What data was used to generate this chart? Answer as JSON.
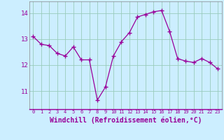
{
  "x": [
    0,
    1,
    2,
    3,
    4,
    5,
    6,
    7,
    8,
    9,
    10,
    11,
    12,
    13,
    14,
    15,
    16,
    17,
    18,
    19,
    20,
    21,
    22,
    23
  ],
  "y": [
    13.1,
    12.8,
    12.75,
    12.45,
    12.35,
    12.7,
    12.2,
    12.2,
    10.65,
    11.15,
    12.35,
    12.9,
    13.25,
    13.85,
    13.95,
    14.05,
    14.1,
    13.3,
    12.25,
    12.15,
    12.1,
    12.25,
    12.1,
    11.85
  ],
  "line_color": "#990099",
  "marker": "+",
  "marker_size": 4,
  "bg_color": "#cceeff",
  "grid_color": "#99ccbb",
  "xlabel": "Windchill (Refroidissement éolien,°C)",
  "xlabel_fontsize": 7,
  "ylabel_ticks": [
    11,
    12,
    13,
    14
  ],
  "xtick_labels": [
    "0",
    "1",
    "2",
    "3",
    "4",
    "5",
    "6",
    "7",
    "8",
    "9",
    "10",
    "11",
    "12",
    "13",
    "14",
    "15",
    "16",
    "17",
    "18",
    "19",
    "20",
    "21",
    "22",
    "23"
  ],
  "ylim": [
    10.3,
    14.45
  ],
  "xlim": [
    -0.5,
    23.5
  ]
}
